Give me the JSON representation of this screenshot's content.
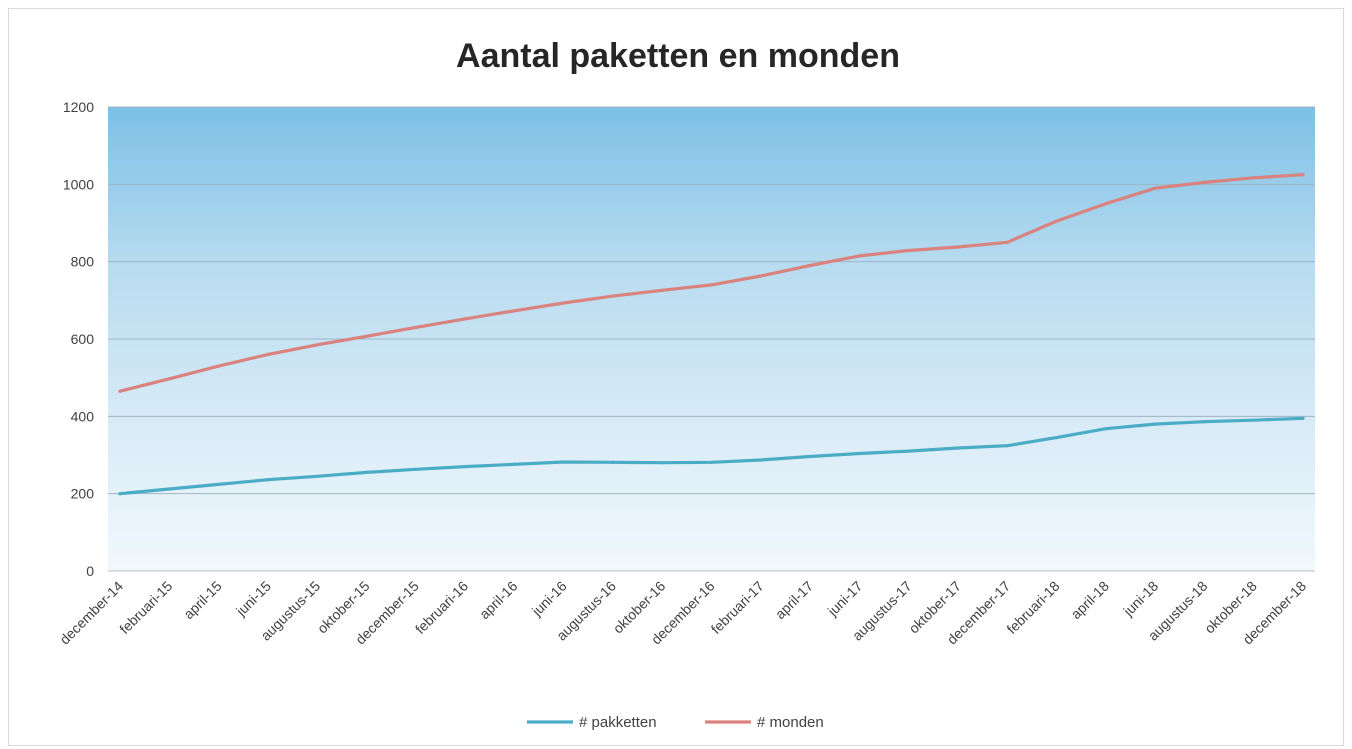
{
  "chart_data": {
    "type": "line",
    "title": "Aantal paketten en monden",
    "xlabel": "",
    "ylabel": "",
    "ylim": [
      0,
      1200
    ],
    "yticks": [
      0,
      200,
      400,
      600,
      800,
      1000,
      1200
    ],
    "grid": true,
    "legend": "bottom",
    "categories": [
      "december-14",
      "februari-15",
      "april-15",
      "juni-15",
      "augustus-15",
      "oktober-15",
      "december-15",
      "februari-16",
      "april-16",
      "juni-16",
      "augustus-16",
      "oktober-16",
      "december-16",
      "februari-17",
      "april-17",
      "juni-17",
      "augustus-17",
      "oktober-17",
      "december-17",
      "februari-18",
      "april-18",
      "juni-18",
      "augustus-18",
      "oktober-18",
      "december-18"
    ],
    "series": [
      {
        "name": "# pakketten",
        "color": "#4bacc6",
        "values": [
          200,
          212,
          224,
          236,
          245,
          255,
          263,
          270,
          276,
          282,
          281,
          280,
          281,
          287,
          296,
          304,
          310,
          318,
          324,
          345,
          368,
          380,
          386,
          390,
          395
        ]
      },
      {
        "name": "# monden",
        "color": "#d9827e",
        "values": [
          465,
          497,
          530,
          560,
          585,
          607,
          630,
          652,
          673,
          693,
          711,
          726,
          740,
          763,
          790,
          815,
          829,
          838,
          850,
          905,
          950,
          990,
          1005,
          1017,
          1025
        ]
      }
    ]
  }
}
